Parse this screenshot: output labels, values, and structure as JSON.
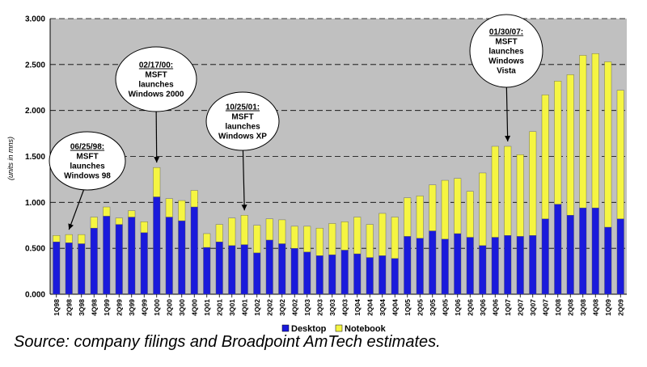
{
  "chart_data": {
    "type": "bar",
    "stacked": true,
    "ylabel": "(units in mns)",
    "ylim": [
      0,
      3
    ],
    "yticks": [
      "0.000",
      "0.500",
      "1.000",
      "1.500",
      "2.000",
      "2.500",
      "3.000"
    ],
    "grid": true,
    "legend_position": "bottom",
    "categories": [
      "1Q98",
      "2Q98",
      "3Q98",
      "4Q98",
      "1Q99",
      "2Q99",
      "3Q99",
      "4Q99",
      "1Q00",
      "2Q00",
      "3Q00",
      "4Q00",
      "1Q01",
      "2Q01",
      "3Q01",
      "4Q01",
      "1Q02",
      "2Q02",
      "3Q02",
      "4Q02",
      "1Q03",
      "2Q03",
      "3Q03",
      "4Q03",
      "1Q04",
      "2Q04",
      "3Q04",
      "4Q04",
      "1Q05",
      "2Q05",
      "3Q05",
      "4Q05",
      "1Q06",
      "2Q06",
      "3Q06",
      "4Q06",
      "1Q07",
      "2Q07",
      "3Q07",
      "4Q07",
      "1Q08",
      "2Q08",
      "3Q08",
      "4Q08",
      "1Q09",
      "2Q09"
    ],
    "series": [
      {
        "name": "Desktop",
        "color": "#1a1adb",
        "values": [
          0.57,
          0.56,
          0.55,
          0.72,
          0.85,
          0.76,
          0.84,
          0.67,
          1.06,
          0.84,
          0.8,
          0.95,
          0.51,
          0.57,
          0.53,
          0.54,
          0.45,
          0.59,
          0.55,
          0.5,
          0.46,
          0.42,
          0.43,
          0.48,
          0.44,
          0.4,
          0.42,
          0.39,
          0.63,
          0.61,
          0.69,
          0.6,
          0.66,
          0.62,
          0.53,
          0.62,
          0.64,
          0.63,
          0.64,
          0.82,
          0.98,
          0.86,
          0.94,
          0.94,
          0.73,
          0.82
        ]
      },
      {
        "name": "Notebook",
        "color": "#f5f542",
        "values": [
          0.07,
          0.09,
          0.1,
          0.12,
          0.1,
          0.07,
          0.07,
          0.12,
          0.32,
          0.2,
          0.22,
          0.18,
          0.15,
          0.19,
          0.3,
          0.32,
          0.3,
          0.23,
          0.26,
          0.24,
          0.28,
          0.3,
          0.34,
          0.31,
          0.4,
          0.36,
          0.46,
          0.45,
          0.42,
          0.46,
          0.5,
          0.64,
          0.6,
          0.5,
          0.79,
          0.99,
          0.97,
          0.89,
          1.13,
          1.35,
          1.34,
          1.53,
          1.66,
          1.68,
          1.8,
          1.4
        ]
      }
    ],
    "annotations": [
      {
        "category": "2Q98",
        "lines": [
          "06/25/98:",
          "MSFT",
          "launches",
          "Windows 98"
        ]
      },
      {
        "category": "1Q00",
        "lines": [
          "02/17/00:",
          "MSFT",
          "launches",
          "Windows 2000"
        ]
      },
      {
        "category": "4Q01",
        "lines": [
          "10/25/01:",
          "MSFT",
          "launches",
          "Windows XP"
        ]
      },
      {
        "category": "1Q07",
        "lines": [
          "01/30/07:",
          "MSFT",
          "launches",
          "Windows",
          "Vista"
        ]
      }
    ]
  },
  "legend": {
    "desktop": "Desktop",
    "notebook": "Notebook"
  },
  "source_note": "Source: company filings and Broadpoint AmTech estimates."
}
